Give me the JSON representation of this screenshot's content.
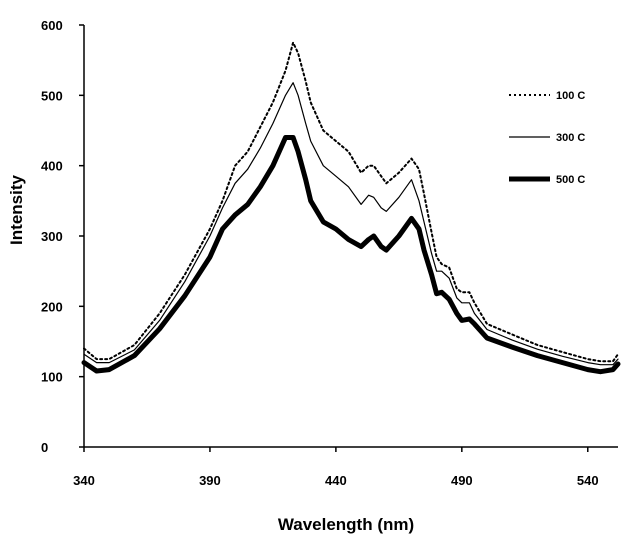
{
  "chart_data": {
    "type": "line",
    "title": "",
    "xlabel": "Wavelength (nm)",
    "ylabel": "Intensity",
    "xlim": [
      340,
      552
    ],
    "ylim": [
      0,
      600
    ],
    "xticks": [
      "340",
      "390",
      "440",
      "490",
      "540"
    ],
    "yticks": [
      "0",
      "100",
      "200",
      "300",
      "400",
      "500",
      "600"
    ],
    "grid": false,
    "legend_position": "top-right",
    "series": [
      {
        "name": "100 C",
        "style": "dotted",
        "color": "#000000",
        "x": [
          340,
          345,
          350,
          360,
          370,
          380,
          390,
          395,
          400,
          405,
          410,
          415,
          420,
          423,
          425,
          428,
          430,
          435,
          440,
          445,
          450,
          453,
          455,
          458,
          460,
          465,
          470,
          473,
          475,
          478,
          480,
          482,
          485,
          488,
          490,
          493,
          495,
          500,
          510,
          520,
          530,
          540,
          545,
          550,
          552
        ],
        "y": [
          140,
          125,
          125,
          145,
          190,
          245,
          310,
          350,
          400,
          420,
          455,
          490,
          535,
          575,
          560,
          520,
          490,
          450,
          435,
          420,
          390,
          400,
          400,
          385,
          375,
          390,
          410,
          395,
          360,
          305,
          270,
          260,
          255,
          225,
          220,
          220,
          205,
          175,
          160,
          145,
          135,
          125,
          122,
          122,
          132
        ]
      },
      {
        "name": "300 C",
        "style": "thin",
        "color": "#000000",
        "x": [
          340,
          345,
          350,
          360,
          370,
          380,
          390,
          395,
          400,
          405,
          410,
          415,
          420,
          423,
          425,
          428,
          430,
          435,
          440,
          445,
          450,
          453,
          455,
          458,
          460,
          465,
          470,
          473,
          475,
          478,
          480,
          482,
          485,
          488,
          490,
          493,
          495,
          500,
          510,
          520,
          530,
          540,
          545,
          550,
          552
        ],
        "y": [
          132,
          120,
          120,
          138,
          180,
          235,
          300,
          340,
          375,
          395,
          425,
          460,
          500,
          518,
          500,
          460,
          435,
          400,
          385,
          370,
          345,
          358,
          355,
          340,
          335,
          355,
          380,
          350,
          320,
          275,
          250,
          250,
          240,
          212,
          205,
          205,
          190,
          167,
          152,
          139,
          129,
          120,
          117,
          117,
          125
        ]
      },
      {
        "name": "500 C",
        "style": "thick",
        "color": "#000000",
        "x": [
          340,
          345,
          350,
          360,
          370,
          380,
          390,
          395,
          400,
          405,
          410,
          415,
          420,
          423,
          425,
          428,
          430,
          435,
          440,
          445,
          450,
          453,
          455,
          458,
          460,
          465,
          470,
          473,
          475,
          478,
          480,
          482,
          485,
          488,
          490,
          493,
          495,
          500,
          510,
          520,
          530,
          540,
          545,
          550,
          552
        ],
        "y": [
          120,
          108,
          110,
          130,
          168,
          215,
          270,
          310,
          330,
          345,
          370,
          400,
          440,
          440,
          420,
          380,
          350,
          320,
          310,
          295,
          285,
          295,
          300,
          285,
          280,
          300,
          325,
          310,
          280,
          245,
          218,
          220,
          210,
          190,
          180,
          182,
          175,
          155,
          142,
          130,
          120,
          110,
          107,
          110,
          118
        ]
      }
    ]
  }
}
